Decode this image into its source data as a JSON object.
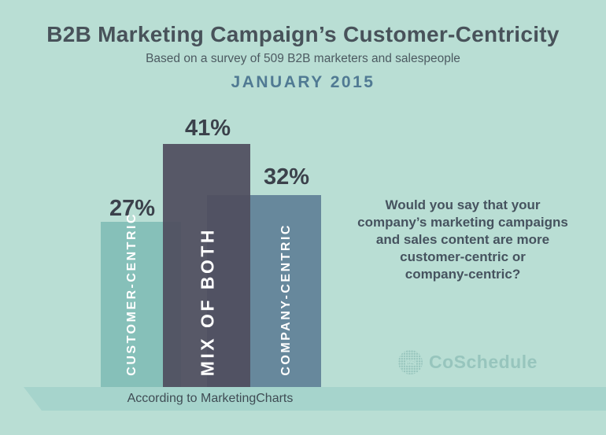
{
  "chart_data": {
    "type": "bar",
    "title": "B2B Marketing Campaign’s Customer-Centricity",
    "subtitle": "Based on a survey of 509 B2B marketers and salespeople",
    "period": "JANUARY 2015",
    "categories": [
      "CUSTOMER-CENTRIC",
      "MIX OF BOTH",
      "COMPANY-CENTRIC"
    ],
    "values": [
      27,
      41,
      32
    ],
    "ylim": [
      0,
      45
    ],
    "grid": false,
    "legend": false,
    "bars": [
      {
        "label": "CUSTOMER-CENTRIC",
        "value": 27,
        "value_label": "27%",
        "color": "#86c0b9"
      },
      {
        "label": "MIX OF BOTH",
        "value": 41,
        "value_label": "41%",
        "color": "#504d5f"
      },
      {
        "label": "COMPANY-CENTRIC",
        "value": 32,
        "value_label": "32%",
        "color": "#67889c"
      }
    ],
    "source": "According to MarketingCharts"
  },
  "question": {
    "lines": [
      "Would you say that your",
      "company’s marketing campaigns",
      "and sales content are more",
      "customer-centric or",
      "company-centric?"
    ]
  },
  "logo": {
    "icon_text": "cs",
    "wordmark": "CoSchedule"
  },
  "colors": {
    "background": "#b9ded4",
    "floor_strip": "#a6d4cc",
    "title_text": "#48525a",
    "date_text": "#507a93",
    "value_text": "#3b414b",
    "logo": "#97c5bd"
  }
}
